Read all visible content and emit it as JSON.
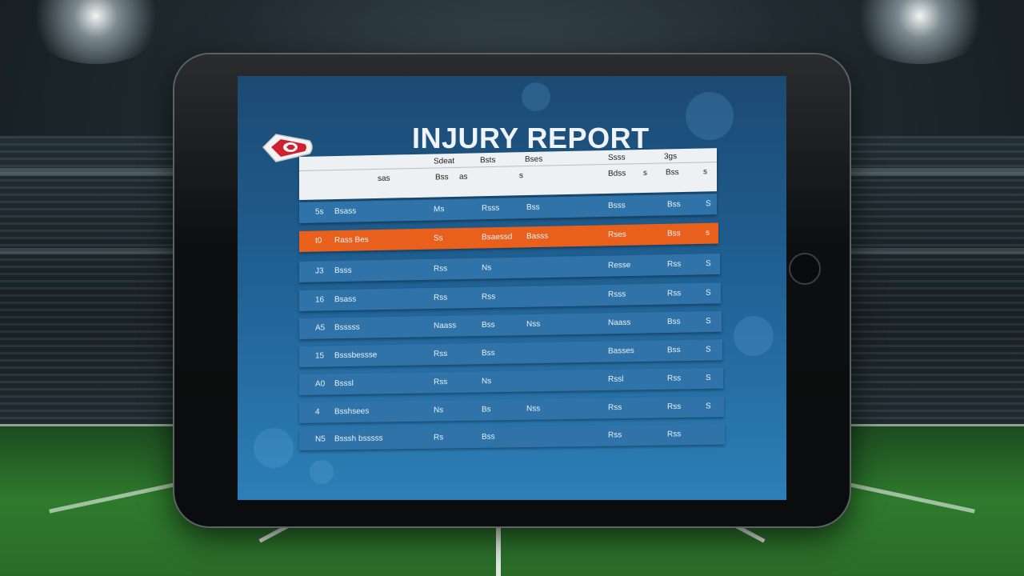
{
  "report": {
    "title": "INJURY REPORT",
    "header_top": [
      "Sdeat",
      "Bsts",
      "Bses",
      "Ssss",
      "3gs"
    ],
    "header_bottom": [
      "sas",
      "Bss",
      "as",
      "s",
      "Bdss",
      "s",
      "Bss",
      "s"
    ],
    "rows": [
      {
        "num": "5s",
        "name": "Bsass",
        "c1": "Ms",
        "c2": "Rsss",
        "c3": "Bss",
        "c4": "Bsss",
        "c5": "Bss",
        "c6": "S"
      },
      {
        "num": "t0",
        "name": "Rass  Bes",
        "c1": "Ss",
        "c2": "Bsaessd",
        "c3": "Basss",
        "c4": "Rses",
        "c5": "Bss",
        "c6": "s"
      },
      {
        "num": "J3",
        "name": "Bsss",
        "c1": "Rss",
        "c2": "Ns",
        "c3": "",
        "c4": "Resse",
        "c5": "Rss",
        "c6": "S"
      },
      {
        "num": "16",
        "name": "Bsass",
        "c1": "Rss",
        "c2": "Rss",
        "c3": "",
        "c4": "Rsss",
        "c5": "Rss",
        "c6": "S"
      },
      {
        "num": "A5",
        "name": "Bsssss",
        "c1": "Naass",
        "c2": "Bss",
        "c3": "Nss",
        "c4": "Naass",
        "c5": "Bss",
        "c6": "S"
      },
      {
        "num": "15",
        "name": "Bsssbessse",
        "c1": "Rss",
        "c2": "Bss",
        "c3": "",
        "c4": "Basses",
        "c5": "Bss",
        "c6": "S"
      },
      {
        "num": "A0",
        "name": "Bsssl",
        "c1": "Rss",
        "c2": "Ns",
        "c3": "",
        "c4": "Rssl",
        "c5": "Rss",
        "c6": "S"
      },
      {
        "num": "4",
        "name": "Bsshsees",
        "c1": "Ns",
        "c2": "Bs",
        "c3": "Nss",
        "c4": "Rss",
        "c5": "Rss",
        "c6": "S"
      },
      {
        "num": "N5",
        "name": "Bsssh bsssss",
        "c1": "Rs",
        "c2": "Bss",
        "c3": "",
        "c4": "Rss",
        "c5": "Rss",
        "c6": ""
      }
    ]
  },
  "colors": {
    "screen": "#1f5f92",
    "row": "#2f73a8",
    "highlight": "#e8601c",
    "header": "#eef1f3"
  },
  "icons": {
    "logo": "arrowhead-logo-icon",
    "home": "home-button"
  }
}
